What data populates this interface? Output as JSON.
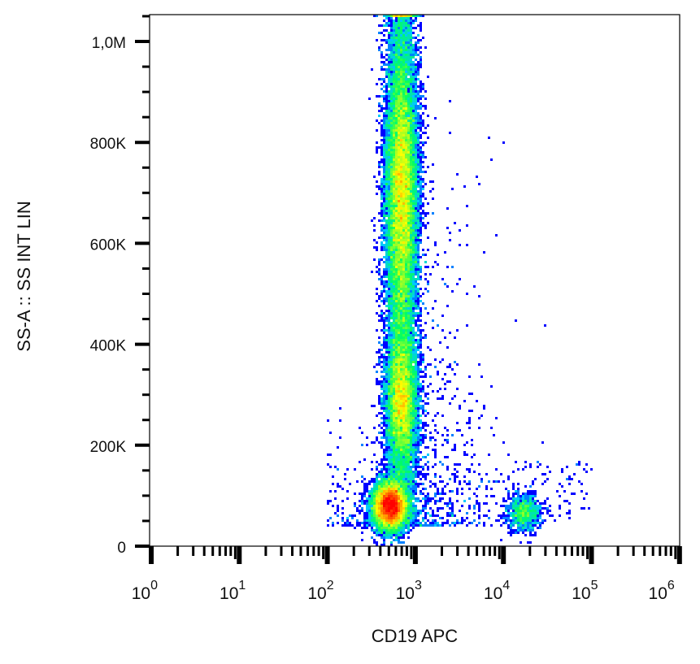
{
  "chart_data": {
    "type": "heatmap",
    "subtype": "flow-cytometry-density-dot-plot",
    "xlabel": "CD19 APC",
    "ylabel": "SS-A :: SS INT LIN",
    "x_scale": "log",
    "y_scale": "linear",
    "xlim": [
      1,
      1000000
    ],
    "ylim": [
      0,
      1050000
    ],
    "x_ticks": [
      {
        "base": "10",
        "exp": "0",
        "value": 1
      },
      {
        "base": "10",
        "exp": "1",
        "value": 10
      },
      {
        "base": "10",
        "exp": "2",
        "value": 100
      },
      {
        "base": "10",
        "exp": "3",
        "value": 1000
      },
      {
        "base": "10",
        "exp": "4",
        "value": 10000
      },
      {
        "base": "10",
        "exp": "5",
        "value": 100000
      },
      {
        "base": "10",
        "exp": "6",
        "value": 1000000
      }
    ],
    "y_ticks": [
      {
        "label": "0",
        "value": 0
      },
      {
        "label": "200K",
        "value": 200000
      },
      {
        "label": "400K",
        "value": 400000
      },
      {
        "label": "600K",
        "value": 600000
      },
      {
        "label": "800K",
        "value": 800000
      },
      {
        "label": "1,0M",
        "value": 1000000
      }
    ],
    "colormap": [
      "#0000ff",
      "#00c8ff",
      "#00ff60",
      "#ffff00",
      "#ff0000"
    ],
    "populations": [
      {
        "description": "high side-scatter CD19-negative column",
        "x_center": 700,
        "y_range": [
          100000,
          1050000
        ],
        "density_peak_y": [
          700000,
          290000
        ]
      },
      {
        "description": "low side-scatter CD19-negative cluster",
        "x_center": 520,
        "y_center": 80000
      },
      {
        "description": "CD19-positive cluster",
        "x_center": 17000,
        "y_center": 65000
      }
    ],
    "grid": false
  }
}
